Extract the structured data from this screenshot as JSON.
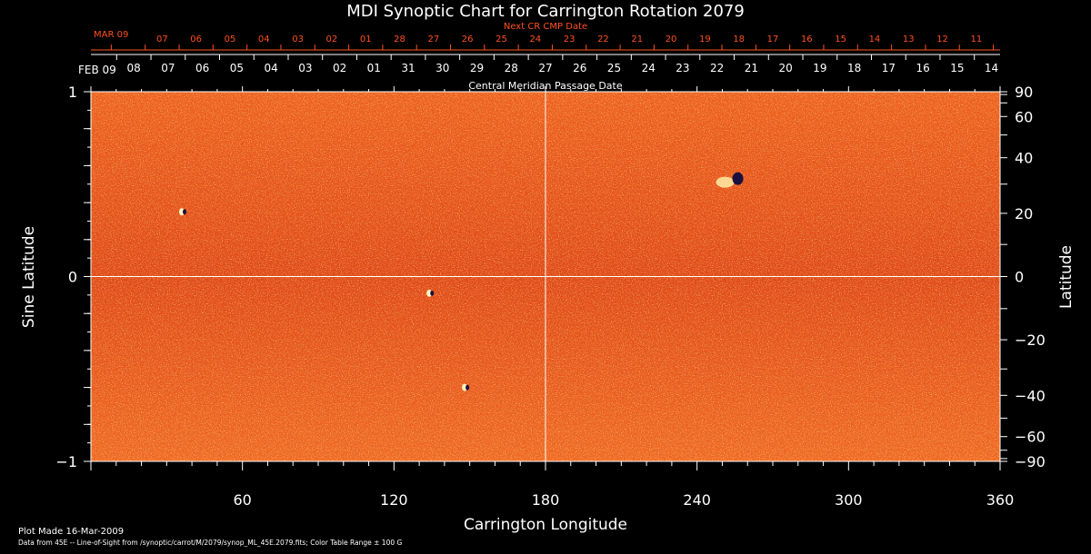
{
  "chart_data": {
    "type": "heatmap",
    "title": "MDI Synoptic Chart for Carrington Rotation 2079",
    "xlabel": "Carrington Longitude",
    "ylabel_left": "Sine Latitude",
    "ylabel_right": "Latitude",
    "xlim": [
      0,
      360
    ],
    "ylim": [
      -1,
      1
    ],
    "x_ticks": [
      60,
      120,
      180,
      240,
      300,
      360
    ],
    "y_ticks_left": [
      -1,
      0,
      1
    ],
    "y_ticks_right": [
      90,
      60,
      40,
      20,
      0,
      -20,
      -40,
      -60,
      -90
    ],
    "top_dates_label": "Central Meridian Passage Date",
    "top_dates_month_label": "FEB 09",
    "top_dates": [
      "08",
      "07",
      "06",
      "05",
      "04",
      "03",
      "02",
      "01",
      "31",
      "30",
      "29",
      "28",
      "27",
      "26",
      "25",
      "24",
      "23",
      "22",
      "21",
      "20",
      "19",
      "18",
      "17",
      "16",
      "15",
      "14"
    ],
    "next_dates_label": "Next CR CMP Date",
    "next_dates_month_label": "MAR 09",
    "next_dates": [
      "07",
      "06",
      "05",
      "04",
      "03",
      "02",
      "01",
      "28",
      "27",
      "26",
      "25",
      "24",
      "23",
      "22",
      "21",
      "20",
      "19",
      "18",
      "17",
      "16",
      "15",
      "14",
      "13",
      "12",
      "11"
    ],
    "grid": "crosshair at longitude 180 and latitude 0",
    "colorbar_range": "± 100 G",
    "features": [
      {
        "lon": 254,
        "sinlat": 0.52,
        "kind": "active-region"
      },
      {
        "lon": 134,
        "sinlat": -0.09,
        "kind": "spot"
      },
      {
        "lon": 148,
        "sinlat": -0.6,
        "kind": "spot"
      },
      {
        "lon": 36,
        "sinlat": 0.35,
        "kind": "spot"
      }
    ]
  },
  "footer": {
    "plot_made": "Plot Made 16-Mar-2009",
    "source": "Data from 45E -- Line-of-Sight from /synoptic/carrot/M/2079/synop_ML_45E.2079.fits; Color Table Range ± 100 G"
  },
  "colors": {
    "field": "#e8501a",
    "accent": "#ff5020",
    "axis": "#ffffff"
  }
}
